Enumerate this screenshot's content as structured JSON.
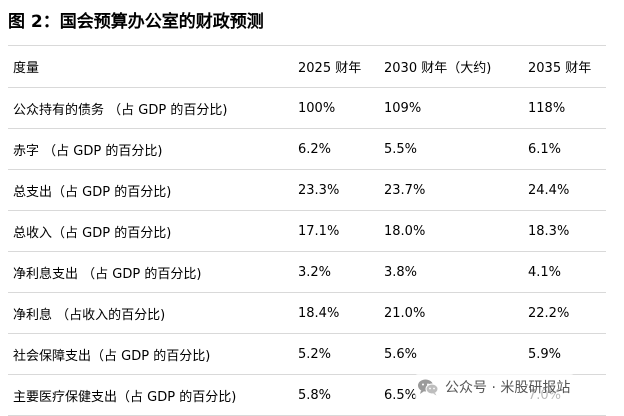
{
  "title": "图 2：国会预算办公室的财政预测",
  "table": {
    "headers": [
      "度量",
      "2025 财年",
      "2030 财年（大约)",
      "2035 财年"
    ],
    "rows": [
      [
        "公众持有的债务 （占 GDP 的百分比)",
        "100%",
        "109%",
        "118%"
      ],
      [
        "赤字 （占 GDP 的百分比)",
        "6.2%",
        "5.5%",
        "6.1%"
      ],
      [
        "总支出（占 GDP 的百分比)",
        "23.3%",
        "23.7%",
        "24.4%"
      ],
      [
        "总收入（占 GDP 的百分比)",
        "17.1%",
        "18.0%",
        "18.3%"
      ],
      [
        "净利息支出 （占 GDP 的百分比)",
        "3.2%",
        "3.8%",
        "4.1%"
      ],
      [
        "净利息 （占收入的百分比)",
        "18.4%",
        "21.0%",
        "22.2%"
      ],
      [
        "社会保障支出（占 GDP 的百分比)",
        "5.2%",
        "5.6%",
        "5.9%"
      ],
      [
        "主要医疗保健支出（占 GDP 的百分比)",
        "5.8%",
        "6.5%",
        "7.0%"
      ]
    ]
  },
  "watermark": {
    "icon": "wechat-icon",
    "text": "公众号 · 米股研报站"
  }
}
